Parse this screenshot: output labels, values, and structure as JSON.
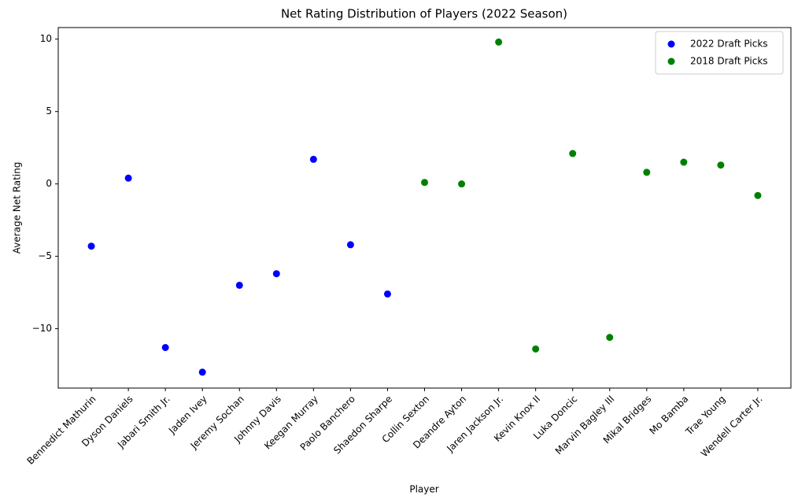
{
  "chart_data": {
    "type": "scatter",
    "title": "Net Rating Distribution of Players (2022 Season)",
    "x_label": "Player",
    "y_label": "Average Net Rating",
    "categories": [
      "Bennedict Mathurin",
      "Dyson Daniels",
      "Jabari Smith Jr.",
      "Jaden Ivey",
      "Jeremy Sochan",
      "Johnny Davis",
      "Keegan Murray",
      "Paolo Banchero",
      "Shaedon Sharpe",
      "Collin Sexton",
      "Deandre Ayton",
      "Jaren Jackson Jr.",
      "Kevin Knox II",
      "Luka Doncic",
      "Marvin Bagley III",
      "Mikal Bridges",
      "Mo Bamba",
      "Trae Young",
      "Wendell Carter Jr."
    ],
    "series": [
      {
        "name": "2022 Draft Picks",
        "color": "#0000ff",
        "values": [
          -4.3,
          0.4,
          -11.3,
          -13.0,
          -7.0,
          -6.2,
          1.7,
          -4.2,
          -7.6,
          null,
          null,
          null,
          null,
          null,
          null,
          null,
          null,
          null,
          null
        ]
      },
      {
        "name": "2018 Draft Picks",
        "color": "#008000",
        "values": [
          null,
          null,
          null,
          null,
          null,
          null,
          null,
          null,
          null,
          0.1,
          0.0,
          9.8,
          -11.4,
          2.1,
          -10.6,
          0.8,
          1.5,
          1.3,
          -0.8
        ]
      }
    ],
    "ylim": [
      -14.1,
      10.8
    ],
    "yticks": [
      {
        "value": -10,
        "label": "−10"
      },
      {
        "value": -5,
        "label": "−5"
      },
      0,
      5,
      10
    ],
    "legend": "upper right"
  }
}
